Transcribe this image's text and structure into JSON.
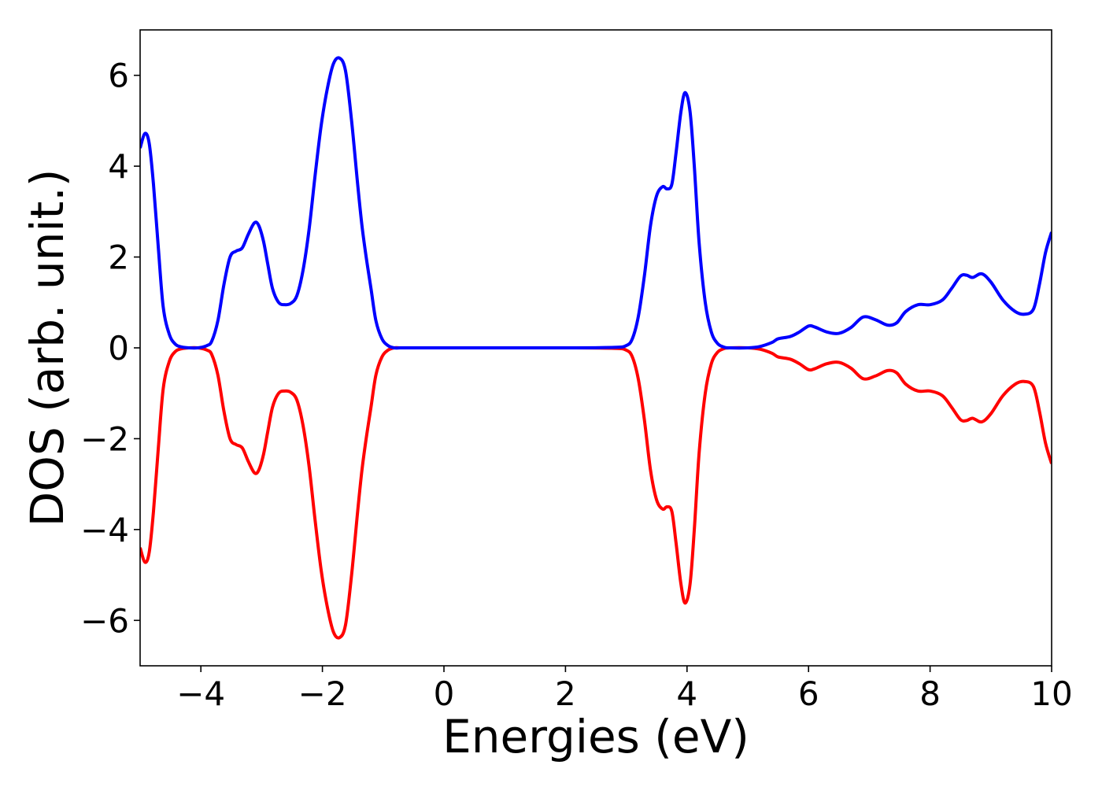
{
  "chart_data": {
    "type": "line",
    "title": "",
    "xlabel": "Energies (eV)",
    "ylabel": "DOS (arb. unit.)",
    "xlim": [
      -5,
      10
    ],
    "ylim": [
      -7,
      7
    ],
    "xticks": [
      -4,
      -2,
      0,
      2,
      4,
      6,
      8,
      10
    ],
    "xtick_labels": [
      "−4",
      "−2",
      "0",
      "2",
      "4",
      "6",
      "8",
      "10"
    ],
    "yticks": [
      -6,
      -4,
      -2,
      0,
      2,
      4,
      6
    ],
    "ytick_labels": [
      "−6",
      "−4",
      "−2",
      "0",
      "2",
      "4",
      "6"
    ],
    "grid": false,
    "legend": "none",
    "series": [
      {
        "color": "#0000ff",
        "x": [
          -5.0,
          -4.92,
          -4.85,
          -4.78,
          -4.7,
          -4.62,
          -4.52,
          -4.42,
          -4.32,
          -4.2,
          -4.05,
          -3.9,
          -3.82,
          -3.72,
          -3.62,
          -3.52,
          -3.42,
          -3.32,
          -3.22,
          -3.12,
          -3.05,
          -2.97,
          -2.9,
          -2.82,
          -2.72,
          -2.62,
          -2.52,
          -2.42,
          -2.32,
          -2.22,
          -2.12,
          -2.02,
          -1.92,
          -1.82,
          -1.72,
          -1.62,
          -1.52,
          -1.42,
          -1.35,
          -1.28,
          -1.2,
          -1.12,
          -1.02,
          -0.92,
          -0.82,
          -0.72,
          -0.62,
          -0.52,
          -0.4,
          0.0,
          1.0,
          2.0,
          2.8,
          3.0,
          3.1,
          3.2,
          3.3,
          3.4,
          3.5,
          3.6,
          3.67,
          3.75,
          3.82,
          3.9,
          3.97,
          4.05,
          4.12,
          4.2,
          4.3,
          4.4,
          4.5,
          4.6,
          4.7,
          5.0,
          5.2,
          5.4,
          5.5,
          5.7,
          5.85,
          6.0,
          6.1,
          6.3,
          6.5,
          6.7,
          6.9,
          7.1,
          7.3,
          7.45,
          7.6,
          7.8,
          8.0,
          8.2,
          8.35,
          8.5,
          8.6,
          8.7,
          8.85,
          9.0,
          9.2,
          9.4,
          9.55,
          9.7,
          9.8,
          9.9,
          10.0
        ],
        "y": [
          4.4,
          4.72,
          4.5,
          3.6,
          2.2,
          0.9,
          0.3,
          0.08,
          0.02,
          0.0,
          0.0,
          0.05,
          0.15,
          0.6,
          1.4,
          2.0,
          2.13,
          2.2,
          2.5,
          2.75,
          2.7,
          2.35,
          1.85,
          1.3,
          1.0,
          0.95,
          0.98,
          1.15,
          1.7,
          2.6,
          3.8,
          4.9,
          5.7,
          6.25,
          6.38,
          6.1,
          5.0,
          3.6,
          2.7,
          2.0,
          1.3,
          0.6,
          0.2,
          0.05,
          0.0,
          0.0,
          0.0,
          0.0,
          0.0,
          0.0,
          0.0,
          0.0,
          0.01,
          0.05,
          0.2,
          0.7,
          1.6,
          2.7,
          3.35,
          3.55,
          3.5,
          3.6,
          4.3,
          5.2,
          5.62,
          5.2,
          4.0,
          2.3,
          1.0,
          0.35,
          0.1,
          0.02,
          0.0,
          0.0,
          0.03,
          0.12,
          0.2,
          0.25,
          0.35,
          0.48,
          0.46,
          0.35,
          0.32,
          0.45,
          0.68,
          0.62,
          0.5,
          0.55,
          0.8,
          0.95,
          0.95,
          1.05,
          1.3,
          1.58,
          1.6,
          1.55,
          1.63,
          1.45,
          1.05,
          0.8,
          0.74,
          0.85,
          1.4,
          2.1,
          2.55
        ]
      },
      {
        "color": "#ff0000",
        "x": [
          -5.0,
          -4.92,
          -4.85,
          -4.78,
          -4.7,
          -4.62,
          -4.52,
          -4.42,
          -4.32,
          -4.2,
          -4.05,
          -3.9,
          -3.82,
          -3.72,
          -3.62,
          -3.52,
          -3.42,
          -3.32,
          -3.22,
          -3.12,
          -3.05,
          -2.97,
          -2.9,
          -2.82,
          -2.72,
          -2.62,
          -2.52,
          -2.42,
          -2.32,
          -2.22,
          -2.12,
          -2.02,
          -1.92,
          -1.82,
          -1.72,
          -1.62,
          -1.52,
          -1.42,
          -1.35,
          -1.28,
          -1.2,
          -1.12,
          -1.02,
          -0.92,
          -0.82,
          -0.72,
          -0.62,
          -0.52,
          -0.4,
          0.0,
          1.0,
          2.0,
          2.8,
          3.0,
          3.1,
          3.2,
          3.3,
          3.4,
          3.5,
          3.6,
          3.67,
          3.75,
          3.82,
          3.9,
          3.97,
          4.05,
          4.12,
          4.2,
          4.3,
          4.4,
          4.5,
          4.6,
          4.7,
          5.0,
          5.2,
          5.4,
          5.5,
          5.7,
          5.85,
          6.0,
          6.1,
          6.3,
          6.5,
          6.7,
          6.9,
          7.1,
          7.3,
          7.45,
          7.6,
          7.8,
          8.0,
          8.2,
          8.35,
          8.5,
          8.6,
          8.7,
          8.85,
          9.0,
          9.2,
          9.4,
          9.55,
          9.7,
          9.8,
          9.9,
          10.0
        ],
        "y": [
          -4.4,
          -4.72,
          -4.5,
          -3.6,
          -2.2,
          -0.9,
          -0.3,
          -0.08,
          -0.02,
          0.0,
          0.0,
          -0.05,
          -0.15,
          -0.6,
          -1.4,
          -2.0,
          -2.13,
          -2.2,
          -2.5,
          -2.75,
          -2.7,
          -2.35,
          -1.85,
          -1.3,
          -1.0,
          -0.95,
          -0.98,
          -1.15,
          -1.7,
          -2.6,
          -3.8,
          -4.9,
          -5.7,
          -6.25,
          -6.38,
          -6.1,
          -5.0,
          -3.6,
          -2.7,
          -2.0,
          -1.3,
          -0.6,
          -0.2,
          -0.05,
          0.0,
          0.0,
          0.0,
          0.0,
          0.0,
          0.0,
          0.0,
          0.0,
          -0.01,
          -0.05,
          -0.2,
          -0.7,
          -1.6,
          -2.7,
          -3.35,
          -3.55,
          -3.5,
          -3.6,
          -4.3,
          -5.2,
          -5.62,
          -5.2,
          -4.0,
          -2.3,
          -1.0,
          -0.35,
          -0.1,
          -0.02,
          0.0,
          0.0,
          -0.03,
          -0.12,
          -0.2,
          -0.25,
          -0.35,
          -0.48,
          -0.46,
          -0.35,
          -0.32,
          -0.45,
          -0.68,
          -0.62,
          -0.5,
          -0.55,
          -0.8,
          -0.95,
          -0.95,
          -1.05,
          -1.3,
          -1.58,
          -1.6,
          -1.55,
          -1.63,
          -1.45,
          -1.05,
          -0.8,
          -0.74,
          -0.85,
          -1.4,
          -2.1,
          -2.55
        ]
      }
    ]
  }
}
